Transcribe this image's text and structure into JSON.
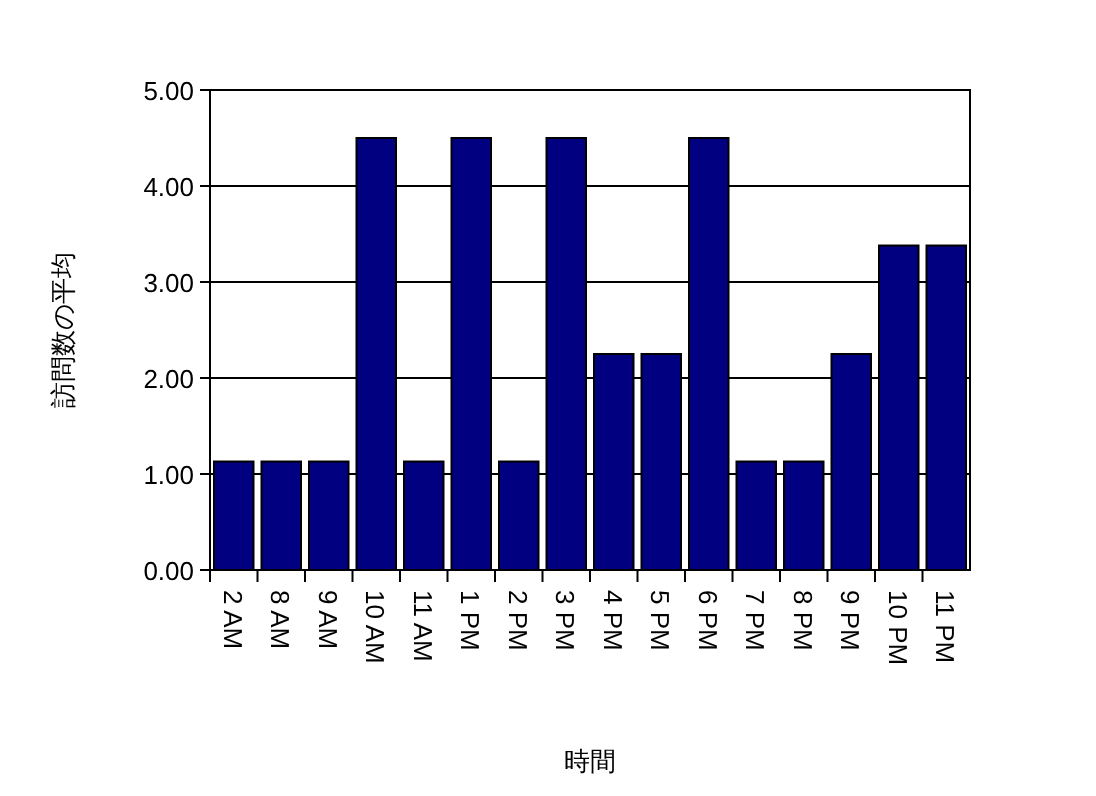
{
  "chart_data": {
    "type": "bar",
    "xlabel": "時間",
    "ylabel": "訪問数の平均",
    "categories": [
      "2 AM",
      "8 AM",
      "9 AM",
      "10 AM",
      "11 AM",
      "1 PM",
      "2 PM",
      "3 PM",
      "4 PM",
      "5 PM",
      "6 PM",
      "7 PM",
      "8 PM",
      "9 PM",
      "10 PM",
      "11 PM"
    ],
    "values": [
      1.13,
      1.13,
      1.13,
      4.5,
      1.13,
      4.5,
      1.13,
      4.5,
      2.25,
      2.25,
      4.5,
      1.13,
      1.13,
      2.25,
      3.38,
      3.38
    ],
    "color": "#000080",
    "ylim": [
      0,
      5
    ],
    "yticks": [
      {
        "value": 0,
        "label": "0.00"
      },
      {
        "value": 1,
        "label": "1.00"
      },
      {
        "value": 2,
        "label": "2.00"
      },
      {
        "value": 3,
        "label": "3.00"
      },
      {
        "value": 4,
        "label": "4.00"
      },
      {
        "value": 5,
        "label": "5.00"
      }
    ],
    "grid": "y"
  }
}
